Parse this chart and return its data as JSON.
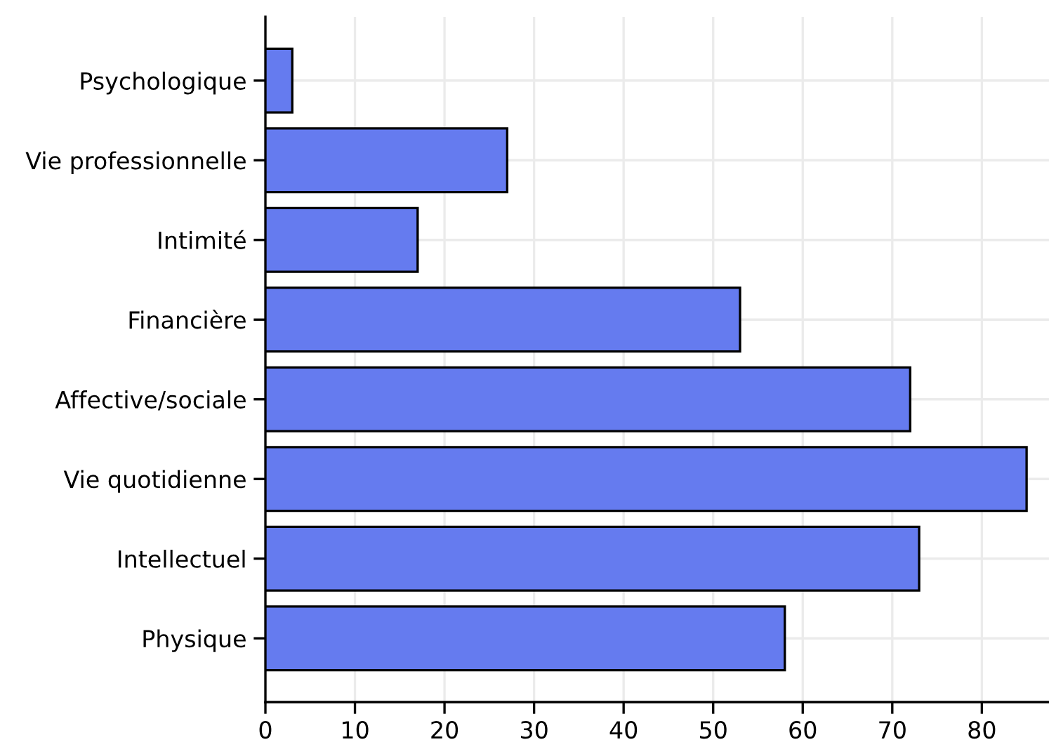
{
  "chart_data": {
    "type": "bar",
    "orientation": "horizontal",
    "categories": [
      "Psychologique",
      "Vie professionnelle",
      "Intimité",
      "Financière",
      "Affective/sociale",
      "Vie quotidienne",
      "Intellectuel",
      "Physique"
    ],
    "values": [
      3,
      27,
      17,
      53,
      72,
      85,
      73,
      58
    ],
    "color": "#657bef",
    "xlim": [
      0,
      87.5
    ],
    "xticks": [
      0,
      10,
      20,
      30,
      40,
      50,
      60,
      70,
      80
    ],
    "grid": true
  }
}
